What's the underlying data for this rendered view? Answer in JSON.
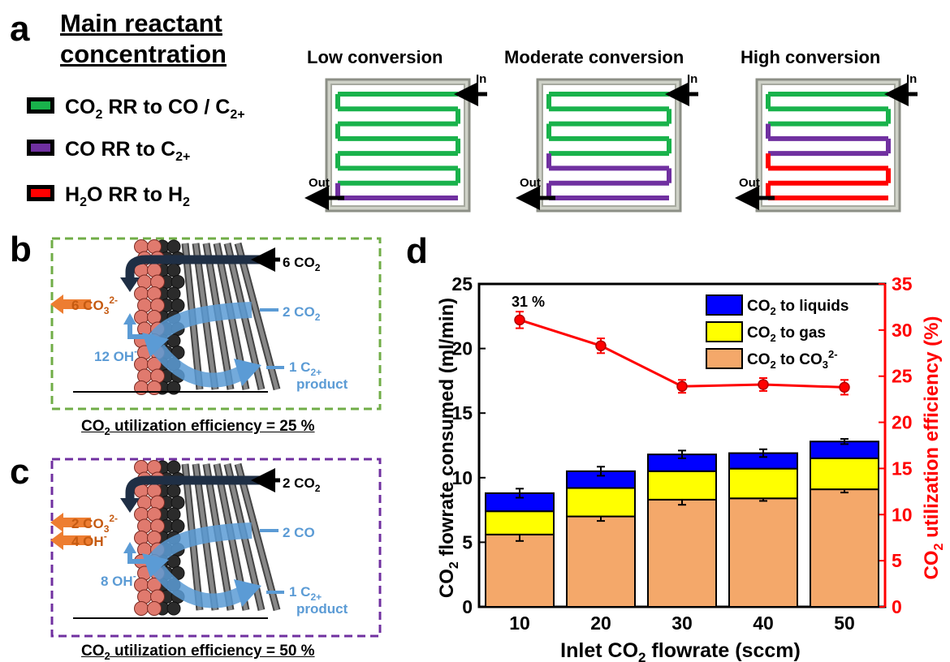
{
  "panel_a": {
    "letter": "a",
    "title_line1": "Main reactant",
    "title_line2": "concentration",
    "legend": [
      {
        "pre": "CO",
        "sub": "2",
        "post": " RR to CO / C",
        "sub2": "2+",
        "color": "#19b24b"
      },
      {
        "pre": "CO RR to C",
        "sub": "2+",
        "post": "",
        "sub2": "",
        "color": "#7030a0"
      },
      {
        "pre": "H",
        "sub": "2",
        "post": "O RR to H",
        "sub2": "2",
        "color": "#ff0000"
      }
    ],
    "headers": [
      "Low conversion",
      "Moderate conversion",
      "High conversion"
    ],
    "in_label": "In",
    "out_label": "Out",
    "colors": {
      "green": "#19b24b",
      "purple": "#7030a0",
      "red": "#ff0000"
    }
  },
  "panel_b": {
    "letter": "b",
    "co2_in": "6 CO",
    "co2_in_sub": "2",
    "carbonate": "6 CO",
    "carbonate_sub": "3",
    "carbonate_sup": "2-",
    "co2_react": "2 CO",
    "co2_react_sub": "2",
    "oh": "12 OH",
    "oh_sup": "-",
    "product_line1": "1 C",
    "product_sub": "2+",
    "product_line2": "product",
    "efficiency_pre": "CO",
    "efficiency_sub": "2",
    "efficiency_post": " utilization efficiency = 25 %"
  },
  "panel_c": {
    "letter": "c",
    "co2_in": "2 CO",
    "co2_in_sub": "2",
    "carbonate": "2 CO",
    "carbonate_sub": "3",
    "carbonate_sup": "2-",
    "oh_out": "4 OH",
    "oh_out_sup": "-",
    "co_react": "2 CO",
    "oh": "8 OH",
    "oh_sup": "-",
    "product_line1": "1 C",
    "product_sub": "2+",
    "product_line2": "product",
    "efficiency_pre": "CO",
    "efficiency_sub": "2",
    "efficiency_post": " utilization efficiency = 50 %"
  },
  "panel_d": {
    "letter": "d"
  },
  "chart_data": {
    "type": "bar",
    "stacked": true,
    "categories": [
      "10",
      "20",
      "30",
      "40",
      "50"
    ],
    "series": [
      {
        "name": "CO2 to CO32-",
        "values": [
          5.6,
          7.0,
          8.3,
          8.4,
          9.1
        ],
        "errors": [
          0.5,
          0.35,
          0.4,
          0.2,
          0.25
        ],
        "color": "#f4a86a"
      },
      {
        "name": "CO2 to gas",
        "values": [
          1.8,
          2.2,
          2.2,
          2.3,
          2.4
        ],
        "color": "#ffff00"
      },
      {
        "name": "CO2 to liquids",
        "values": [
          1.4,
          1.3,
          1.3,
          1.2,
          1.3
        ],
        "errors": [
          0.35,
          0.35,
          0.3,
          0.3,
          0.2
        ],
        "color": "#0000ff"
      }
    ],
    "efficiency": {
      "values": [
        31.1,
        28.3,
        23.9,
        24.1,
        23.8
      ],
      "errors": [
        0.9,
        0.8,
        0.7,
        0.7,
        0.8
      ],
      "color": "#ff0000"
    },
    "annotation": "31 %",
    "ylim": [
      0,
      25
    ],
    "y2lim": [
      0,
      35
    ],
    "yticks": [
      "0",
      "5",
      "10",
      "15",
      "20",
      "25"
    ],
    "y2ticks": [
      "0",
      "5",
      "10",
      "15",
      "20",
      "25",
      "30",
      "35"
    ],
    "xlabel_pre": "Inlet CO",
    "xlabel_sub": "2",
    "xlabel_post": " flowrate (sccm)",
    "ylabel_pre": "CO",
    "ylabel_sub": "2",
    "ylabel_post": " flowrate consumed (ml/min)",
    "y2label_pre": "CO",
    "y2label_sub": "2",
    "y2label_post": " utilization efficiency (%)",
    "legend": [
      {
        "pre": "CO",
        "sub": "2",
        "post": " to liquids",
        "sup": "",
        "color": "#0000ff"
      },
      {
        "pre": "CO",
        "sub": "2",
        "post": " to gas",
        "sup": "",
        "color": "#ffff00"
      },
      {
        "pre": "CO",
        "sub": "2",
        "post": " to CO",
        "sub3": "3",
        "sup": "2-",
        "color": "#f4a86a"
      }
    ]
  }
}
